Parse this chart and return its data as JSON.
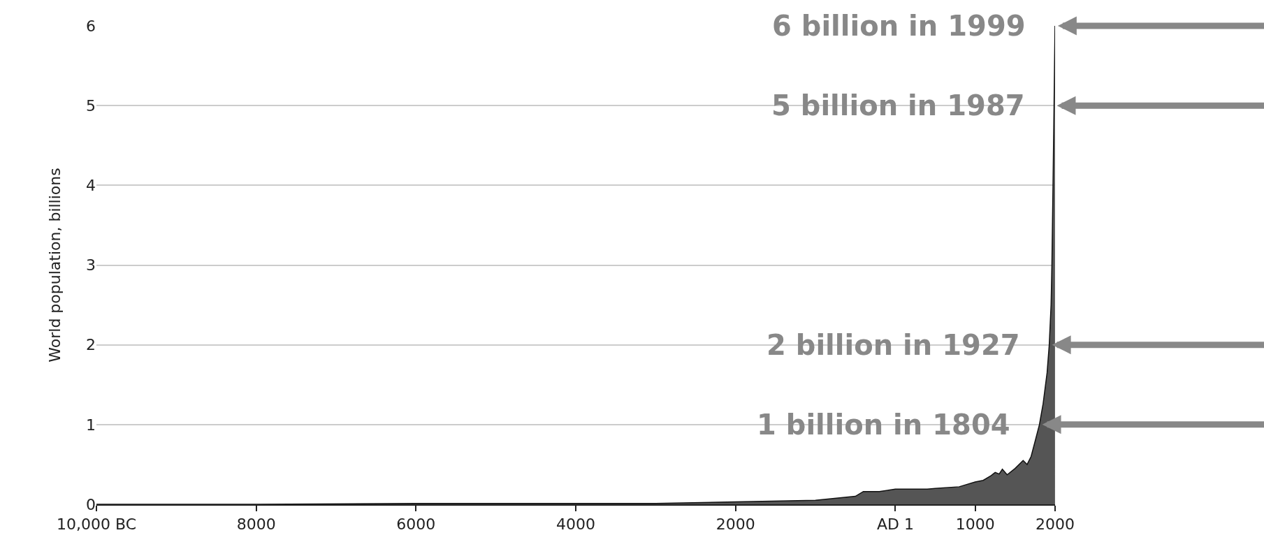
{
  "chart_data": {
    "type": "area",
    "ylabel": "World population, billions",
    "x": [
      -10000,
      -8000,
      -6000,
      -4000,
      -3000,
      -2000,
      -1000,
      -500,
      -400,
      -200,
      0,
      200,
      400,
      500,
      800,
      1000,
      1100,
      1200,
      1250,
      1300,
      1340,
      1400,
      1500,
      1600,
      1650,
      1700,
      1750,
      1804,
      1850,
      1900,
      1927,
      1950,
      1960,
      1974,
      1987,
      1999
    ],
    "series": [
      {
        "color": "#555555",
        "values": [
          0,
          0,
          0.01,
          0.01,
          0.01,
          0.03,
          0.05,
          0.1,
          0.16,
          0.16,
          0.19,
          0.19,
          0.19,
          0.2,
          0.22,
          0.28,
          0.3,
          0.36,
          0.4,
          0.38,
          0.44,
          0.37,
          0.45,
          0.55,
          0.5,
          0.6,
          0.79,
          1.0,
          1.26,
          1.65,
          2.0,
          2.5,
          3.0,
          4.0,
          5.0,
          6.0
        ]
      }
    ],
    "xlim": [
      -10000,
      2000
    ],
    "xticks": [
      {
        "value": -10000,
        "label": "10,000 BC"
      },
      {
        "value": -8000,
        "label": "8000"
      },
      {
        "value": -6000,
        "label": "6000"
      },
      {
        "value": -4000,
        "label": "4000"
      },
      {
        "value": -2000,
        "label": "2000"
      },
      {
        "value": 1,
        "label": "AD 1"
      },
      {
        "value": 1000,
        "label": "1000"
      },
      {
        "value": 2000,
        "label": "2000"
      }
    ],
    "ylim": [
      0,
      6
    ],
    "yticks": [
      0,
      1,
      2,
      3,
      4,
      5,
      6
    ],
    "grid": "y",
    "annotations": [
      {
        "text": "6 billion in 1999",
        "x": 1999,
        "y": 6
      },
      {
        "text": "5 billion in 1987",
        "x": 1987,
        "y": 5
      },
      {
        "text": "2 billion in 1927",
        "x": 1927,
        "y": 2
      },
      {
        "text": "1 billion in 1804",
        "x": 1804,
        "y": 1
      }
    ]
  }
}
